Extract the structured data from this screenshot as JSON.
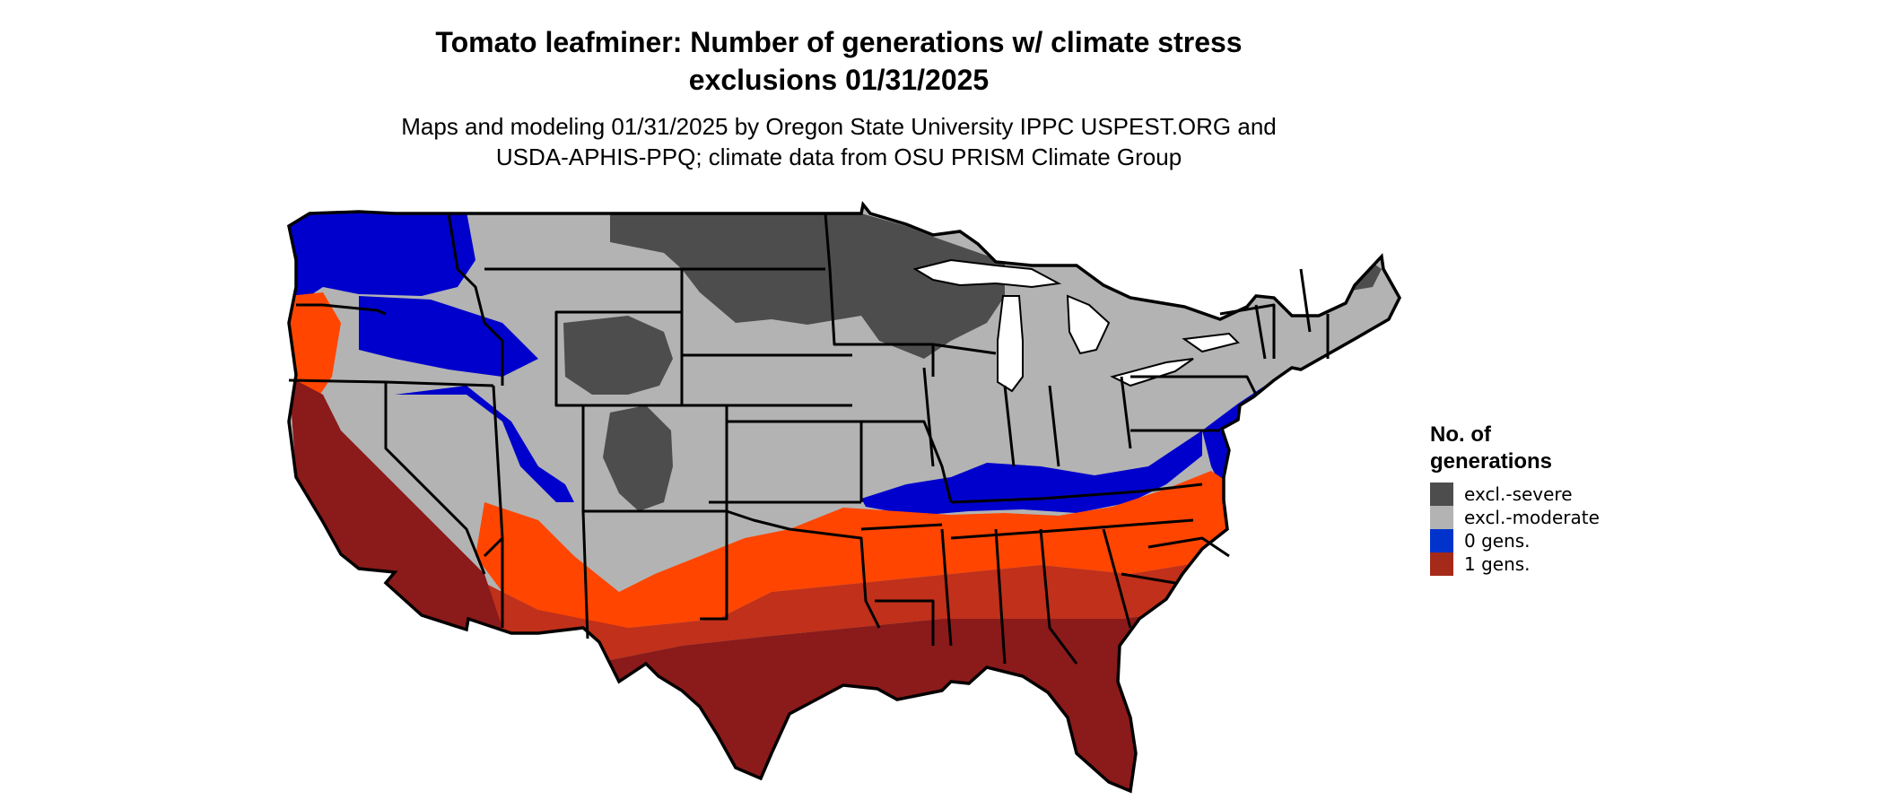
{
  "title": {
    "line1": "Tomato leafminer: Number of generations w/ climate stress",
    "line2": "exclusions 01/31/2025"
  },
  "subtitle": {
    "line1": "Maps and modeling 01/31/2025 by Oregon State University IPPC USPEST.ORG and",
    "line2": "USDA-APHIS-PPQ; climate data from OSU PRISM Climate Group"
  },
  "legend": {
    "title_line1": "No. of",
    "title_line2": "generations",
    "items": [
      {
        "label": "excl.-severe",
        "color": "#4d4d4d"
      },
      {
        "label": "excl.-moderate",
        "color": "#b3b3b3"
      },
      {
        "label": "0 gens.",
        "color": "#0033cc"
      },
      {
        "label": "1 gens.",
        "color": "#a52a1a"
      }
    ]
  },
  "map_colors": {
    "severe": "#4d4d4d",
    "moderate": "#b3b3b3",
    "zero_gens": "#0000cc",
    "one_gen_dark": "#8b1a1a",
    "one_gen_mid": "#c0301a",
    "one_gen_light": "#ff4500",
    "border": "#000000",
    "water": "#ffffff"
  }
}
